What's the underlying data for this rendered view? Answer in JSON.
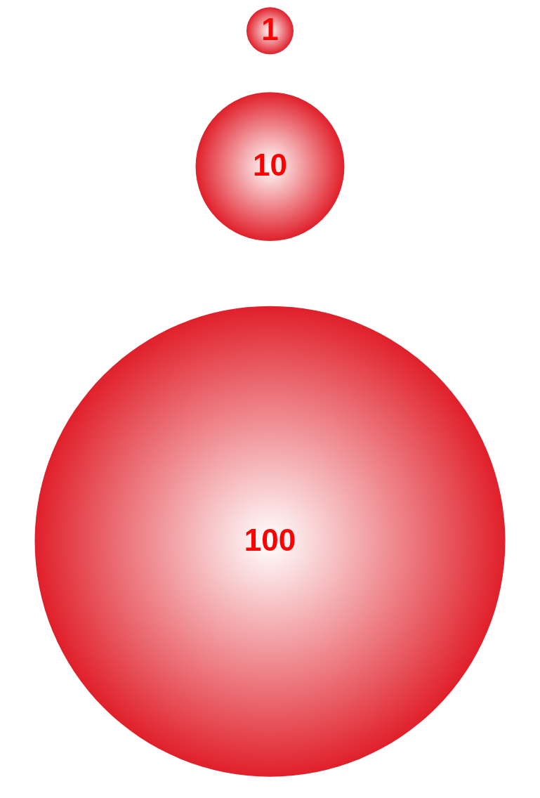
{
  "chart_data": {
    "type": "other",
    "values": [
      1,
      10,
      100
    ],
    "color": "#e0202a",
    "data_labels": true
  }
}
